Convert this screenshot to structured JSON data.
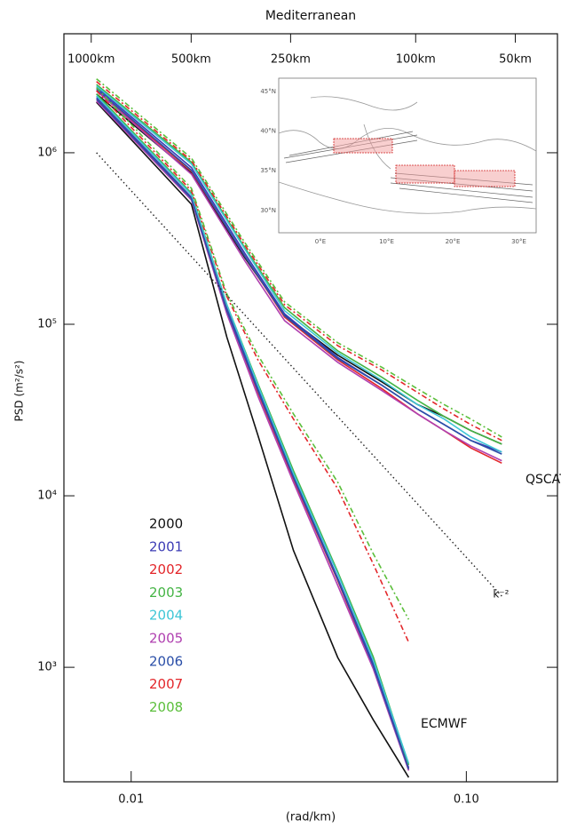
{
  "chart_data": {
    "type": "line",
    "title": "Mediterranean",
    "x_label": "(rad/km)",
    "y_label": "PSD (m²/s²)",
    "log_x": true,
    "log_y": true,
    "xlim": [
      0.0063,
      0.187
    ],
    "ylim": [
      215,
      4940000
    ],
    "xticks": [
      {
        "value": 0.01,
        "label": "0.01"
      },
      {
        "value": 0.1,
        "label": "0.10"
      }
    ],
    "top_xticks": [
      {
        "value": 0.0076,
        "label": "1000km"
      },
      {
        "value": 0.0151,
        "label": "500km"
      },
      {
        "value": 0.0299,
        "label": "250km"
      },
      {
        "value": 0.0706,
        "label": "100km"
      },
      {
        "value": 0.14,
        "label": "50km"
      }
    ],
    "yticks": [
      {
        "value": 1000,
        "label": "10³"
      },
      {
        "value": 10000,
        "label": "10⁴"
      },
      {
        "value": 100000,
        "label": "10⁵"
      },
      {
        "value": 1000000,
        "label": "10⁶"
      }
    ],
    "x_qscat": [
      0.00788,
      0.01513,
      0.02182,
      0.02869,
      0.04135,
      0.05607,
      0.07153,
      0.08589,
      0.1031,
      0.1276
    ],
    "x_ecmwf": [
      0.00788,
      0.01513,
      0.0193,
      0.02389,
      0.03049,
      0.04135,
      0.05277,
      0.0673
    ],
    "series": [
      {
        "name": "2000",
        "color": "#111111",
        "dashed": false,
        "qscat": [
          2200000,
          760000,
          245000,
          113000,
          66000,
          46000,
          34000,
          29000,
          24000,
          20000
        ],
        "ecmwf": [
          1970000,
          500000,
          84000,
          22500,
          4800,
          1140,
          494,
          228
        ]
      },
      {
        "name": "2001",
        "color": "#3b3bb5",
        "dashed": false,
        "qscat": [
          2400000,
          820000,
          260000,
          115000,
          64000,
          44000,
          32000,
          26000,
          21000,
          18000
        ],
        "ecmwf": [
          2100000,
          550000,
          125000,
          42000,
          13000,
          3300,
          1050,
          260
        ]
      },
      {
        "name": "2002",
        "color": "#e3262a",
        "dashed": false,
        "qscat": [
          2300000,
          780000,
          250000,
          110000,
          62000,
          42000,
          30000,
          24000,
          19000,
          15500
        ],
        "ecmwf": [
          2050000,
          540000,
          120000,
          40000,
          12500,
          3200,
          1000,
          255
        ]
      },
      {
        "name": "2003",
        "color": "#44b444",
        "dashed": false,
        "qscat": [
          2500000,
          880000,
          280000,
          125000,
          70000,
          49000,
          36000,
          29000,
          24000,
          20000
        ],
        "ecmwf": [
          2200000,
          580000,
          130000,
          45000,
          14000,
          3600,
          1150,
          270
        ]
      },
      {
        "name": "2004",
        "color": "#3ec6d6",
        "dashed": false,
        "qscat": [
          2450000,
          860000,
          275000,
          120000,
          68000,
          47000,
          34000,
          28000,
          22000,
          18000
        ],
        "ecmwf": [
          2150000,
          570000,
          130000,
          44000,
          13500,
          3500,
          1100,
          275
        ]
      },
      {
        "name": "2005",
        "color": "#b040b0",
        "dashed": false,
        "qscat": [
          2300000,
          750000,
          235000,
          105000,
          60000,
          41000,
          30000,
          24000,
          19500,
          16000
        ],
        "ecmwf": [
          2000000,
          530000,
          115000,
          38000,
          12000,
          3000,
          980,
          250
        ]
      },
      {
        "name": "2006",
        "color": "#2b4fa8",
        "dashed": false,
        "qscat": [
          2350000,
          790000,
          250000,
          112000,
          63000,
          44000,
          32000,
          26000,
          21000,
          17500
        ],
        "ecmwf": [
          2050000,
          540000,
          120000,
          41000,
          12800,
          3250,
          1020,
          255
        ]
      },
      {
        "name": "2007",
        "color": "#e3262a",
        "dashed": true,
        "qscat": [
          2600000,
          900000,
          290000,
          130000,
          75000,
          54000,
          40000,
          32000,
          26000,
          21000
        ],
        "ecmwf": [
          2300000,
          600000,
          145000,
          62000,
          28000,
          11000,
          4000,
          1400
        ]
      },
      {
        "name": "2008",
        "color": "#5cbf3c",
        "dashed": true,
        "qscat": [
          2700000,
          930000,
          300000,
          135000,
          78000,
          56000,
          42000,
          34000,
          28000,
          22000
        ],
        "ecmwf": [
          2400000,
          620000,
          150000,
          66000,
          30000,
          12000,
          4600,
          1900
        ]
      }
    ],
    "reference": {
      "label": "k⁻²",
      "x": [
        0.00788,
        0.1276
      ],
      "values": [
        1000000,
        2600
      ]
    },
    "annotations": [
      "QSCAT",
      "ECMWF"
    ],
    "inset": {
      "lat_labels": [
        "45°N",
        "40°N",
        "35°N",
        "30°N"
      ],
      "lon_labels": [
        "0°E",
        "10°E",
        "20°E",
        "30°E"
      ]
    }
  }
}
